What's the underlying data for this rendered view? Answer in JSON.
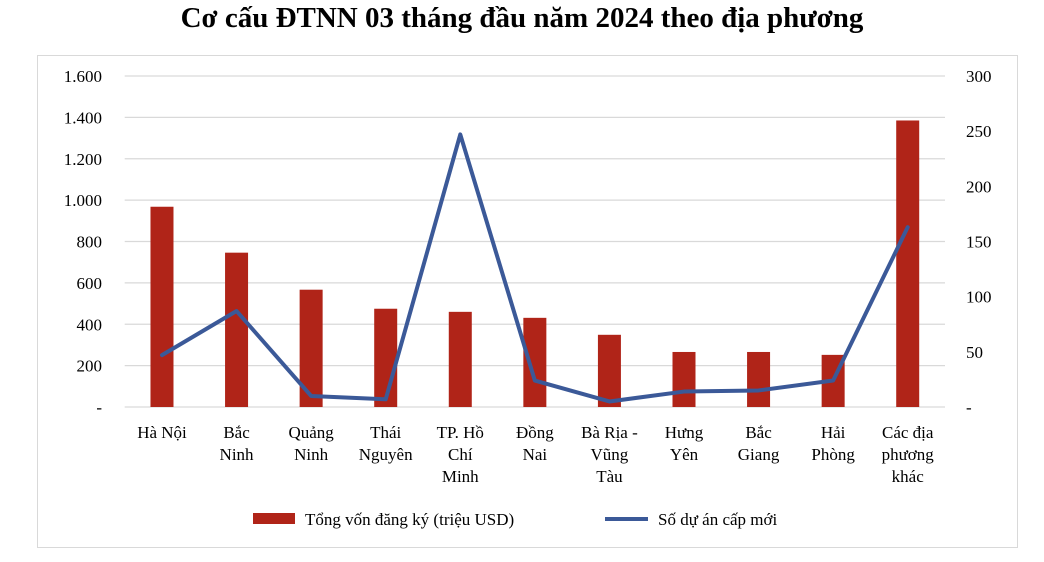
{
  "chart_data": {
    "type": "bar+line",
    "title": "Cơ cấu ĐTNN 03 tháng đầu năm 2024 theo địa phương",
    "categories": [
      [
        "Hà Nội"
      ],
      [
        "Bắc",
        "Ninh"
      ],
      [
        "Quảng",
        "Ninh"
      ],
      [
        "Thái",
        "Nguyên"
      ],
      [
        "TP. Hồ",
        "Chí",
        "Minh"
      ],
      [
        "Đồng",
        "Nai"
      ],
      [
        "Bà Rịa -",
        "Vũng",
        "Tàu"
      ],
      [
        "Hưng",
        "Yên"
      ],
      [
        "Bắc",
        "Giang"
      ],
      [
        "Hải",
        "Phòng"
      ],
      [
        "Các địa",
        "phương",
        "khác"
      ]
    ],
    "series": [
      {
        "name": "Tổng vốn đăng ký (triệu USD)",
        "type": "bar",
        "axis": "left",
        "color": "#B02418",
        "values": [
          968,
          746,
          567,
          475,
          460,
          431,
          349,
          266,
          266,
          252,
          1385
        ]
      },
      {
        "name": "Số dự án cấp mới",
        "type": "line",
        "axis": "right",
        "color": "#3B5998",
        "values": [
          47,
          87,
          10,
          7,
          247,
          24,
          5,
          14,
          15,
          24,
          163
        ]
      }
    ],
    "left_axis": {
      "range": [
        0,
        1600
      ],
      "ticks": [
        "-",
        "200",
        "400",
        "600",
        "800",
        "1.000",
        "1.200",
        "1.400",
        "1.600"
      ]
    },
    "right_axis": {
      "range": [
        0,
        300
      ],
      "ticks": [
        "-",
        "50",
        "100",
        "150",
        "200",
        "250",
        "300"
      ]
    },
    "grid": true,
    "legend": "bottom"
  }
}
